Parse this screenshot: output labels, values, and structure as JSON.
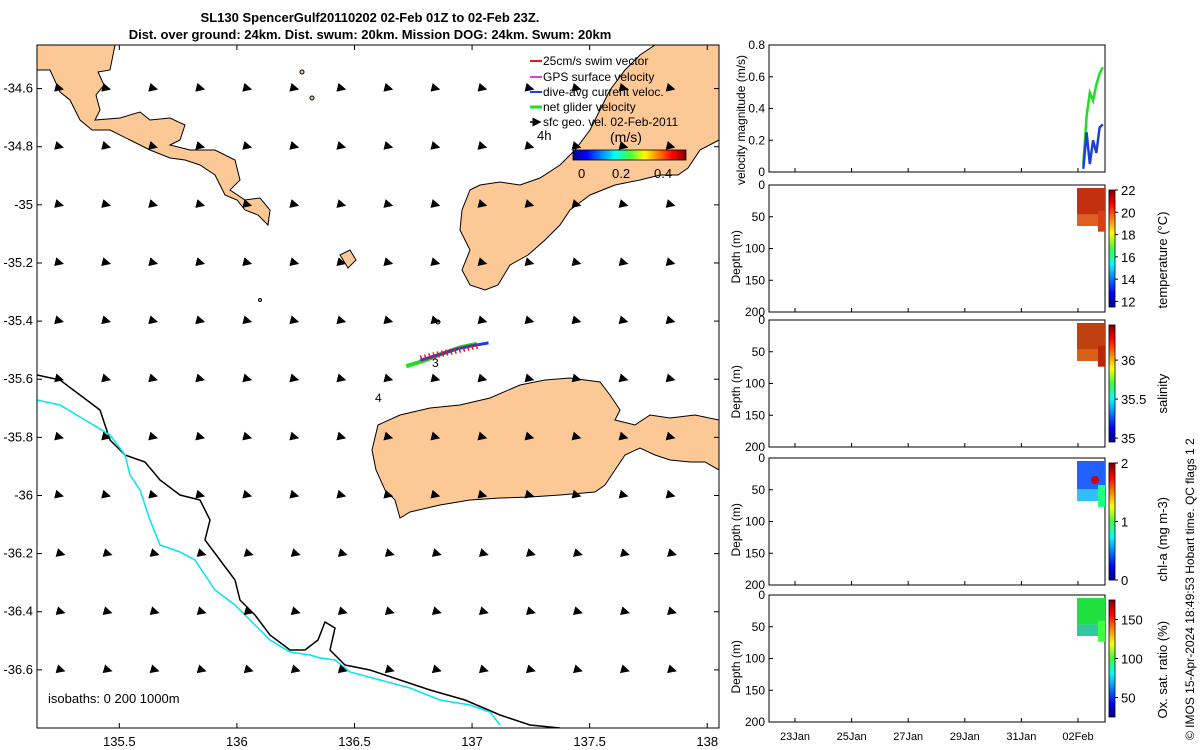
{
  "header": {
    "title_line1": "SL130 SpencerGulf20110202 02-Feb 01Z to 02-Feb 23Z.",
    "title_line2": "Dist. over ground: 24km. Dist. swum: 20km. Mission DOG: 24km. Swum: 20km"
  },
  "copyright": "© IMOS 15-Apr-2024 18:49:53 Hobart time. QC flags 1  2",
  "map": {
    "legend": {
      "items": [
        {
          "label": "25cm/s swim vector",
          "color": "#e41a1c"
        },
        {
          "label": "GPS surface velocity",
          "color": "#e040e0"
        },
        {
          "label": "dive-avg current veloc.",
          "color": "#1f3fd8"
        },
        {
          "label": "net glider velocity",
          "color": "#22dd22"
        },
        {
          "label": "sfc geo. vel. 02-Feb-2011",
          "color": "#000000"
        }
      ],
      "time_label": "4h"
    },
    "colorbar": {
      "label": "(m/s)",
      "ticks": [
        "0",
        "0.2",
        "0.4"
      ]
    },
    "isobaths_label": "isobaths: 0   200  1000m",
    "track_markers": [
      "3",
      "4"
    ],
    "land_color": "#fcc896",
    "isobath_color": "#00e5ee"
  },
  "chart_data": [
    {
      "type": "line",
      "title": "",
      "xlabel": "",
      "ylabel": "",
      "xlim": [
        135.15,
        138.05
      ],
      "ylim": [
        -36.8,
        -34.45
      ],
      "xticks": [
        "135.5",
        "136",
        "136.5",
        "137",
        "137.5",
        "138"
      ],
      "yticks": [
        "-34.6",
        "-34.8",
        "-35",
        "-35.2",
        "-35.4",
        "-35.6",
        "-35.8",
        "-36",
        "-36.2",
        "-36.4",
        "-36.6"
      ],
      "series": [
        {
          "name": "net glider velocity",
          "x": [
            136.72,
            136.8,
            136.88,
            136.95,
            137.02
          ],
          "y": [
            -35.555,
            -35.535,
            -35.51,
            -35.49,
            -35.478
          ]
        },
        {
          "name": "dive-avg current veloc.",
          "x": [
            136.78,
            136.86,
            136.94,
            137.0,
            137.07
          ],
          "y": [
            -35.535,
            -35.515,
            -35.495,
            -35.485,
            -35.475
          ]
        }
      ]
    },
    {
      "type": "line",
      "ylabel": "velocity magnitude (m/s)",
      "xlim": [
        0,
        15.5
      ],
      "ylim": [
        0,
        0.8
      ],
      "yticks": [
        "0",
        "0.2",
        "0.4",
        "0.6",
        "0.8"
      ],
      "series": [
        {
          "name": "net glider velocity",
          "x": [
            14.5,
            14.65,
            14.8,
            14.95,
            15.1,
            15.25,
            15.4
          ],
          "y": [
            0.05,
            0.35,
            0.5,
            0.45,
            0.55,
            0.62,
            0.66
          ]
        },
        {
          "name": "dive-avg current veloc.",
          "x": [
            14.5,
            14.65,
            14.8,
            14.95,
            15.1,
            15.25,
            15.4
          ],
          "y": [
            0.02,
            0.25,
            0.05,
            0.2,
            0.12,
            0.28,
            0.3
          ]
        }
      ]
    },
    {
      "type": "heatmap",
      "ylabel": "Depth (m)",
      "colorbar_label": "temperature (°C)",
      "ylim": [
        200,
        0
      ],
      "yticks": [
        "0",
        "50",
        "100",
        "150",
        "200"
      ],
      "colorbar_ticks": [
        "22",
        "20",
        "18",
        "16",
        "14",
        "12"
      ],
      "clim": [
        11.5,
        22
      ]
    },
    {
      "type": "heatmap",
      "ylabel": "Depth (m)",
      "colorbar_label": "salinity",
      "ylim": [
        200,
        0
      ],
      "yticks": [
        "0",
        "50",
        "100",
        "150",
        "200"
      ],
      "colorbar_ticks": [
        "36",
        "35.5",
        "35"
      ],
      "clim": [
        34.95,
        36.45
      ]
    },
    {
      "type": "heatmap",
      "ylabel": "Depth (m)",
      "colorbar_label": "chl-a (mg m-3)",
      "ylim": [
        200,
        0
      ],
      "yticks": [
        "0",
        "50",
        "100",
        "150",
        "200"
      ],
      "colorbar_ticks": [
        "2",
        "1",
        "0"
      ],
      "clim": [
        0,
        2
      ]
    },
    {
      "type": "heatmap",
      "ylabel": "Depth (m)",
      "colorbar_label": "Ox. sat. ratio (%)",
      "ylim": [
        200,
        0
      ],
      "yticks": [
        "0",
        "50",
        "100",
        "150",
        "200"
      ],
      "colorbar_ticks": [
        "150",
        "100",
        "50"
      ],
      "clim": [
        25,
        175
      ],
      "xticks": [
        "23Jan",
        "25Jan",
        "27Jan",
        "29Jan",
        "31Jan",
        "02Feb"
      ]
    }
  ]
}
